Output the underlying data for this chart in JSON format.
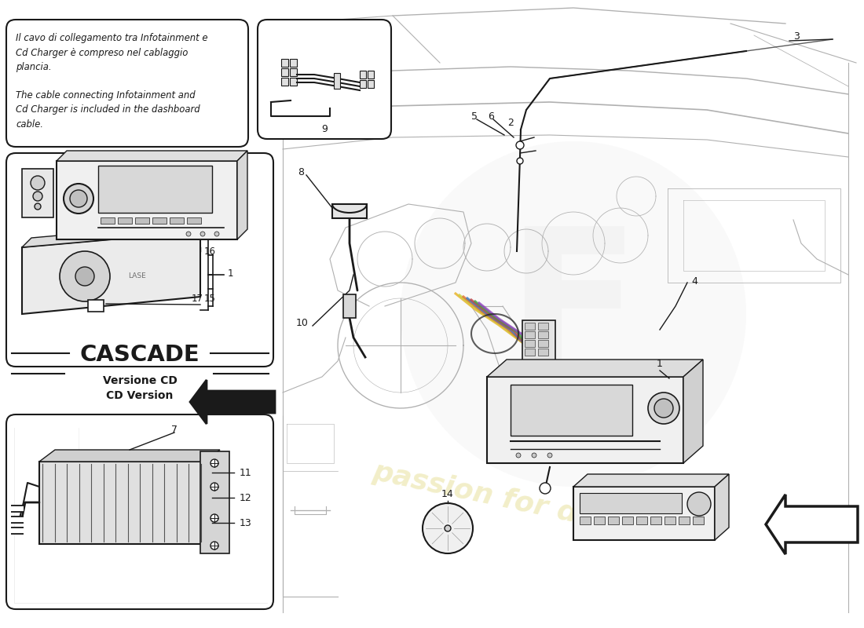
{
  "bg_color": "#ffffff",
  "line_color": "#1a1a1a",
  "sketch_color": "#b0b0b0",
  "sketch_lw": 0.8,
  "watermark_color": "#d4c84a",
  "text_it": "Il cavo di collegamento tra Infotainment e\nCd Charger è compreso nel cablaggio\nplancia.",
  "text_en": "The cable connecting Infotainment and\nCd Charger is included in the dashboard\ncable.",
  "cascade_text": "CASCADE",
  "versione_text": "Versione CD\nCD Version",
  "figsize": [
    11.0,
    8.0
  ],
  "dpi": 100
}
